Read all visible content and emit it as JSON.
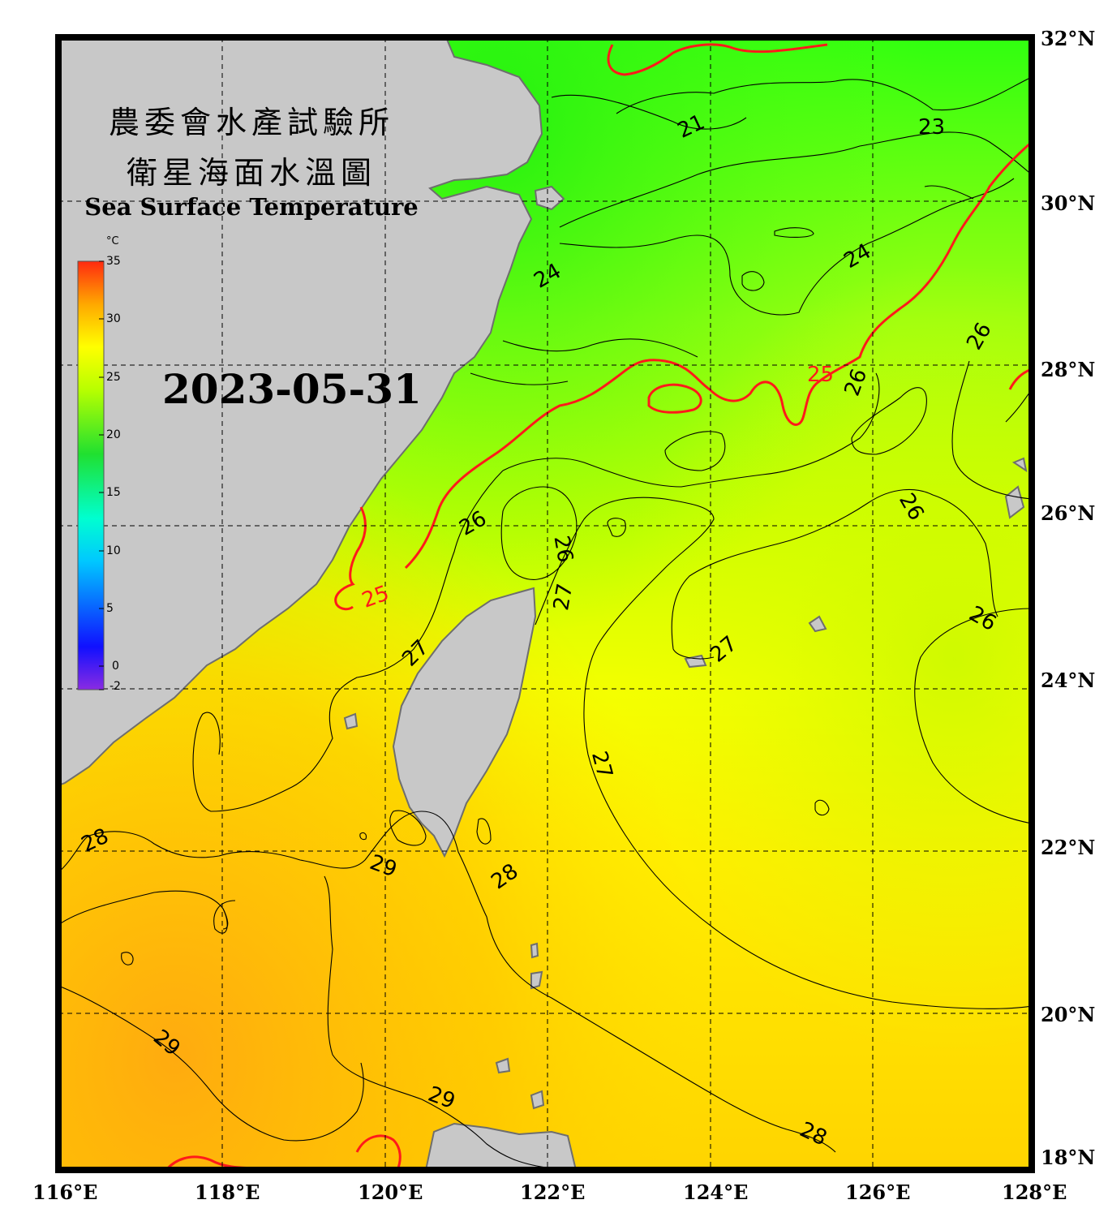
{
  "header": {
    "agency_zh": "農委會水產試驗所",
    "title_zh": "衛星海面水溫圖",
    "title_en": "Sea Surface Temperature",
    "date": "2023-05-31"
  },
  "colorbar": {
    "unit": "°C",
    "ticks": [
      "35",
      "30",
      "25",
      "20",
      "15",
      "10",
      "5",
      "0",
      "-2"
    ],
    "min": -2,
    "max": 35
  },
  "axes": {
    "lat_labels": [
      "32°N",
      "30°N",
      "28°N",
      "26°N",
      "24°N",
      "22°N",
      "20°N",
      "18°N"
    ],
    "lon_labels": [
      "116°E",
      "118°E",
      "120°E",
      "122°E",
      "124°E",
      "126°E",
      "128°E"
    ]
  },
  "contour_labels": [
    "21",
    "23",
    "24",
    "24",
    "25",
    "25",
    "26",
    "26",
    "26",
    "26",
    "26",
    "26",
    "27",
    "27",
    "27",
    "27",
    "28",
    "28",
    "28",
    "29",
    "29",
    "29"
  ],
  "colors": {
    "land": "#c8c8c8",
    "coast": "#6e6e6e",
    "contour": "#000000",
    "contour_25": "#ff1a1a"
  }
}
